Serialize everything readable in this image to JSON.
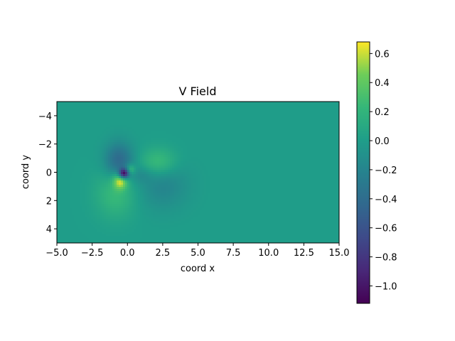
{
  "chart_data": {
    "type": "heatmap",
    "title": "V Field",
    "xlabel": "coord x",
    "ylabel": "coord y",
    "xlim": [
      -5.0,
      15.0
    ],
    "ylim": [
      5.0,
      -5.0
    ],
    "y_axis_inverted": true,
    "colormap": "viridis",
    "xticks": [
      -5.0,
      -2.5,
      0.0,
      2.5,
      5.0,
      7.5,
      10.0,
      12.5,
      15.0
    ],
    "xtick_labels": [
      "−5.0",
      "−2.5",
      "0.0",
      "2.5",
      "5.0",
      "7.5",
      "10.0",
      "12.5",
      "15.0"
    ],
    "yticks": [
      -4,
      -2,
      0,
      2,
      4
    ],
    "ytick_labels": [
      "−4",
      "−2",
      "0",
      "2",
      "4"
    ],
    "colorbar": {
      "vmin": -1.12,
      "vmax": 0.68,
      "ticks": [
        -1.0,
        -0.8,
        -0.6,
        -0.4,
        -0.2,
        0.0,
        0.2,
        0.4,
        0.6
      ],
      "tick_labels": [
        "−1.0",
        "−0.8",
        "−0.6",
        "−0.4",
        "−0.2",
        "0.0",
        "0.2",
        "0.4",
        "0.6"
      ]
    },
    "background_value": 0.0,
    "features": [
      {
        "x": -0.25,
        "y": 0.1,
        "value": -1.1,
        "sx": 0.25,
        "sy": 0.25
      },
      {
        "x": -0.5,
        "y": 0.6,
        "value": 0.6,
        "sx": 0.35,
        "sy": 0.4
      },
      {
        "x": -0.8,
        "y": 1.5,
        "value": 0.25,
        "sx": 1.0,
        "sy": 1.2
      },
      {
        "x": 0.2,
        "y": -0.2,
        "value": 0.35,
        "sx": 0.25,
        "sy": 0.25
      },
      {
        "x": -0.6,
        "y": -0.8,
        "value": -0.45,
        "sx": 0.7,
        "sy": 0.9
      },
      {
        "x": 2.2,
        "y": -0.7,
        "value": 0.3,
        "sx": 0.9,
        "sy": 0.7
      },
      {
        "x": 2.5,
        "y": 0.9,
        "value": -0.2,
        "sx": 1.3,
        "sy": 1.2
      },
      {
        "x": 1.0,
        "y": 0.2,
        "value": -0.12,
        "sx": 0.5,
        "sy": 0.4
      }
    ]
  }
}
